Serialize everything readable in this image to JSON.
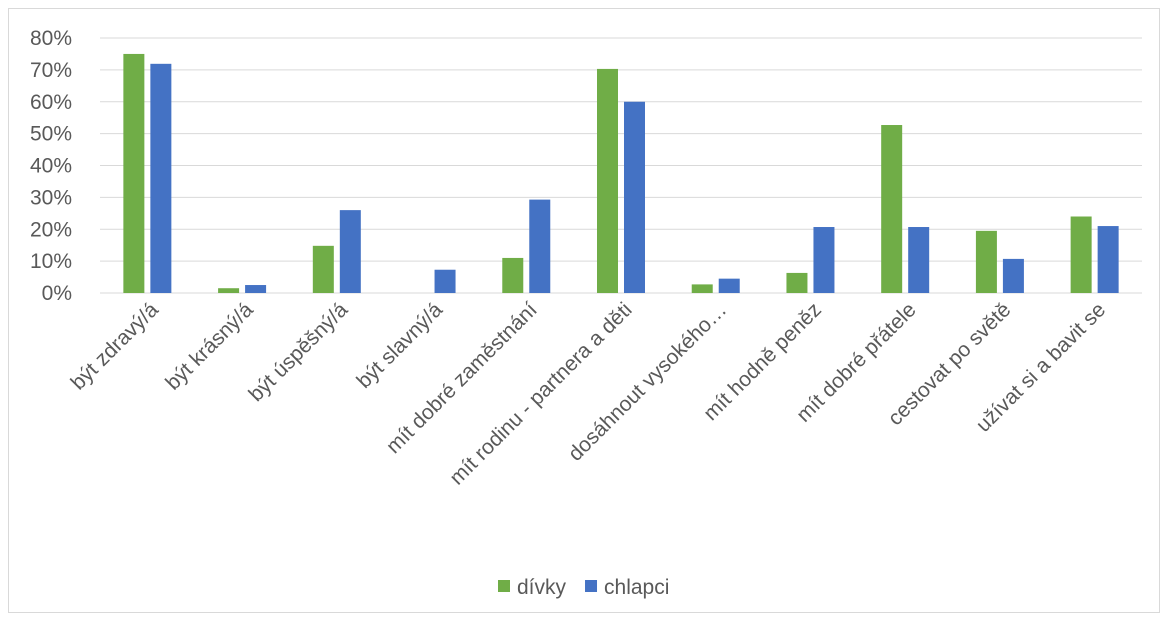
{
  "chart_data": {
    "type": "bar",
    "categories": [
      "být zdravý/á",
      "být krásný/á",
      "být úspěšný/á",
      "být slavný/á",
      "mít dobré zaměstnání",
      "mít  rodinu - partnera a děti",
      "dosáhnout vysokého…",
      "mít hodně peněz",
      "mít dobré přátele",
      "cestovat po světě",
      "užívat si a bavit se"
    ],
    "series": [
      {
        "name": "dívky",
        "color": "#70ad47",
        "values": [
          75,
          1.5,
          14.8,
          0,
          11,
          70.3,
          2.7,
          6.3,
          52.7,
          19.5,
          24
        ]
      },
      {
        "name": "chlapci",
        "color": "#4472c4",
        "values": [
          71.9,
          2.5,
          26,
          7.3,
          29.3,
          60,
          4.5,
          20.7,
          20.7,
          10.7,
          21
        ]
      }
    ],
    "ylim": [
      0,
      80
    ],
    "yticks": [
      "0%",
      "10%",
      "20%",
      "30%",
      "40%",
      "50%",
      "60%",
      "70%",
      "80%"
    ],
    "grid": true,
    "legend": "bottom",
    "title": "",
    "xlabel": "",
    "ylabel": ""
  }
}
